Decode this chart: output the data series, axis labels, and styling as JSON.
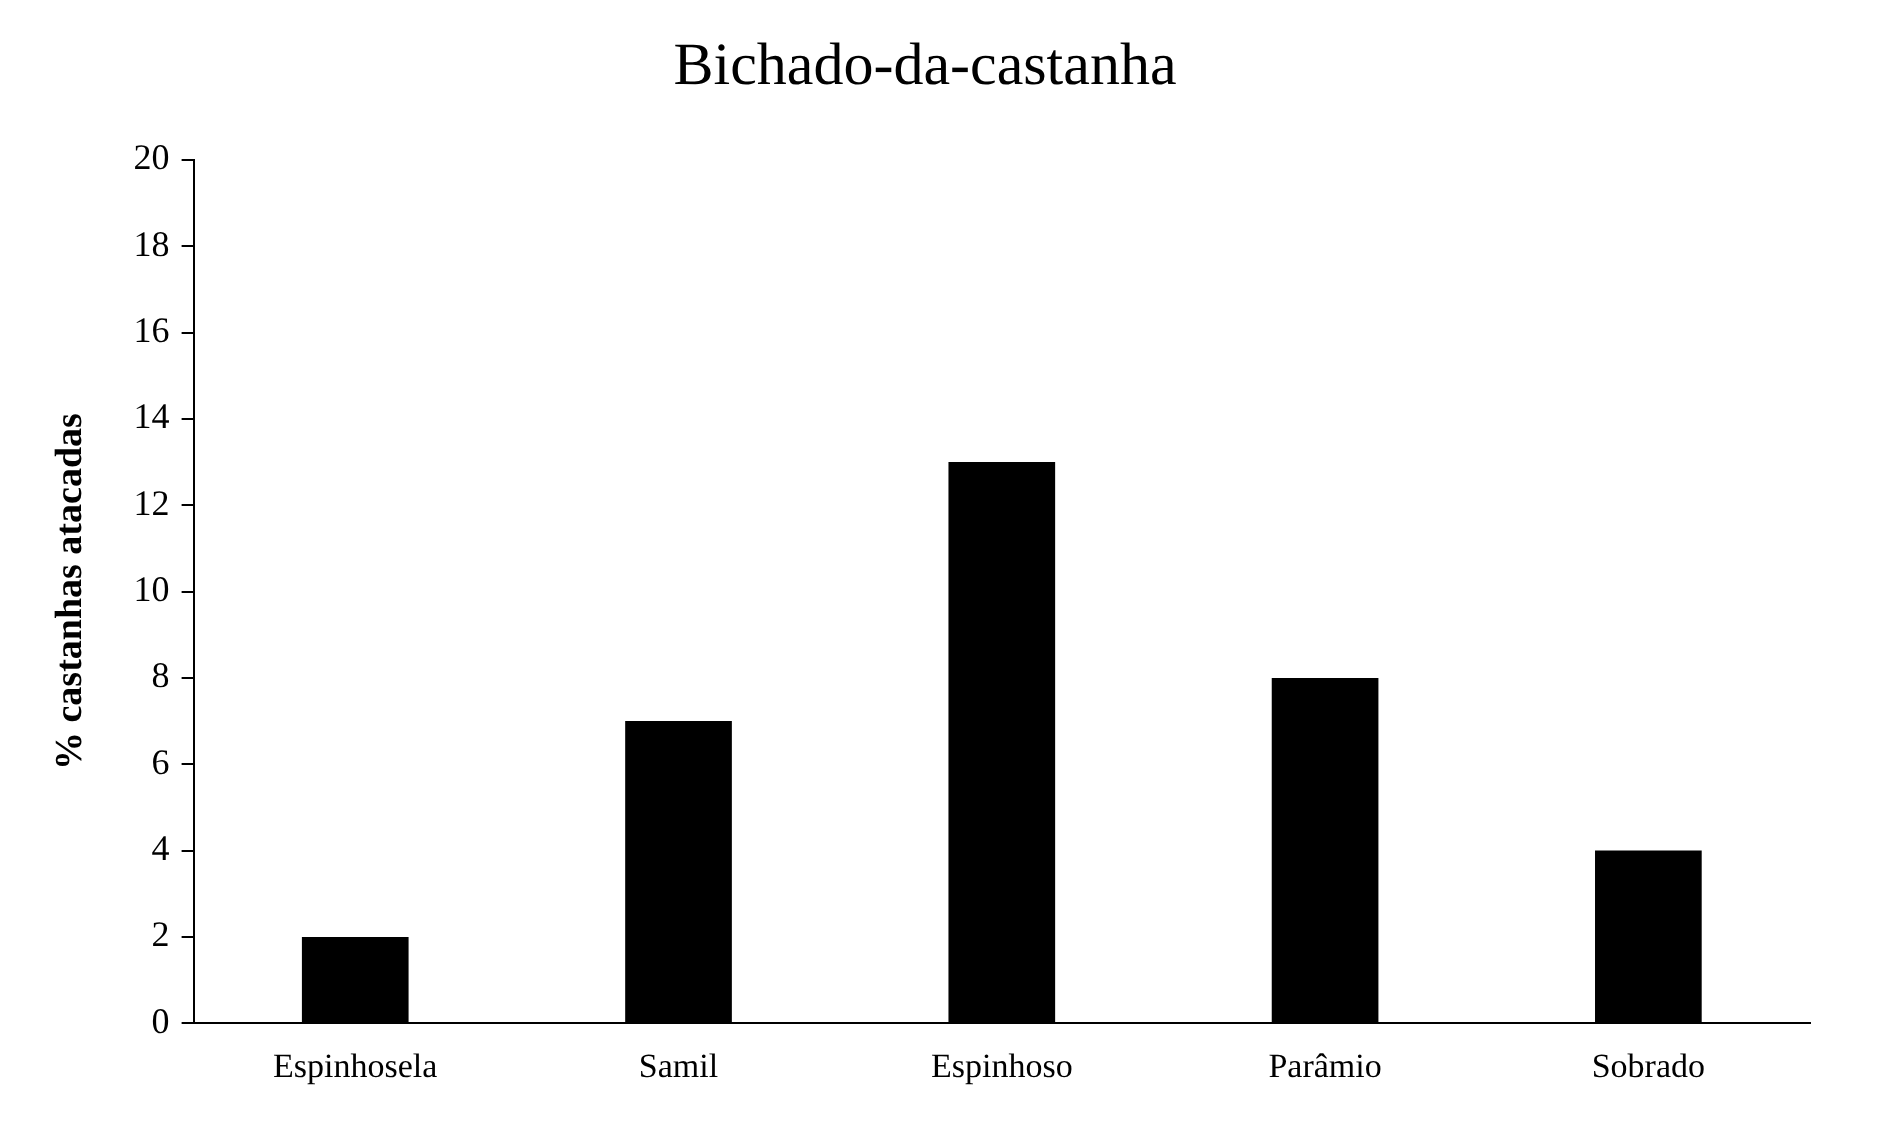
{
  "chart_data": {
    "type": "bar",
    "title": "Bichado-da-castanha",
    "ylabel": "% castanhas atacadas",
    "categories": [
      "Espinhosela",
      "Samil",
      "Espinhoso",
      "Parâmio",
      "Sobrado"
    ],
    "series": [
      {
        "color": "#000000",
        "values": [
          2,
          7,
          13,
          8,
          4
        ]
      }
    ],
    "ylim": [
      0,
      20
    ],
    "yticks": [
      0,
      2,
      4,
      6,
      8,
      10,
      12,
      14,
      16,
      18,
      20
    ],
    "grid": false,
    "legend": false
  }
}
